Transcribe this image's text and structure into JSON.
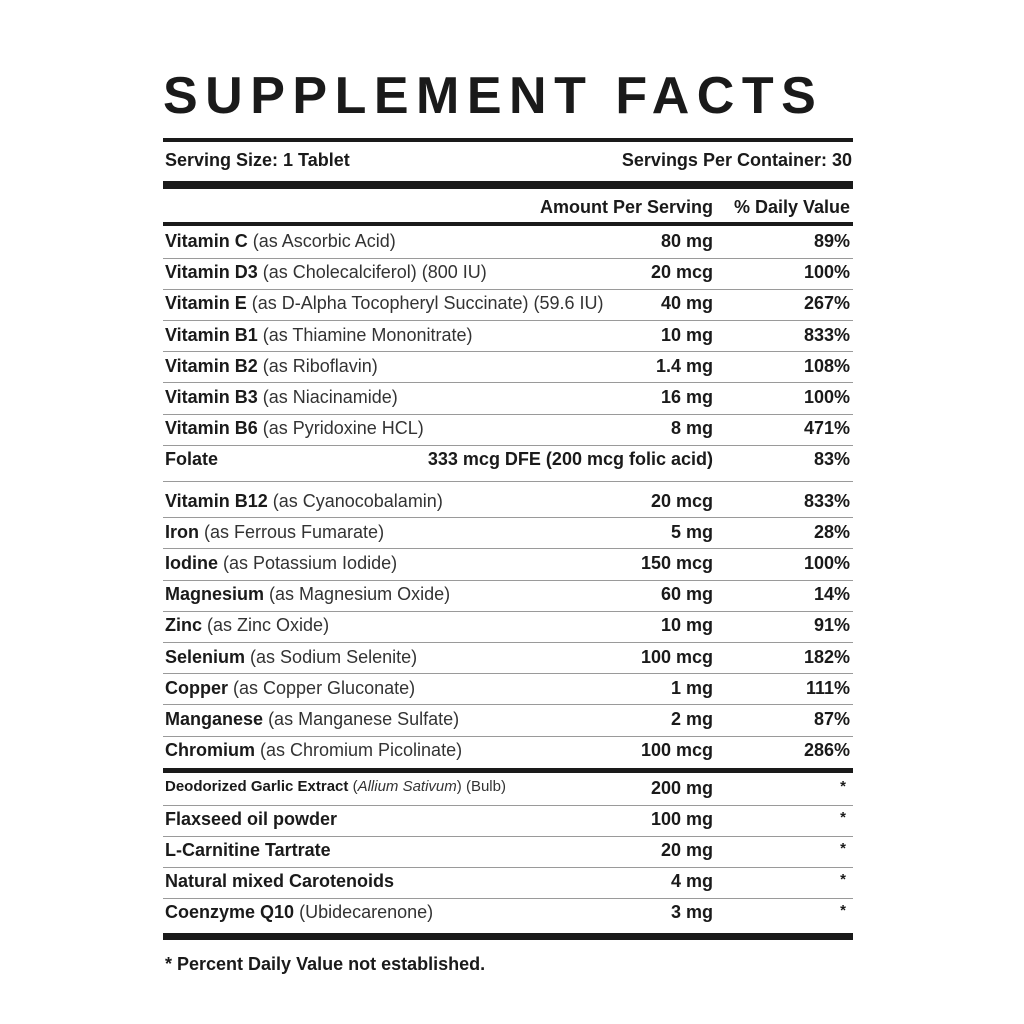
{
  "title": "SUPPLEMENT FACTS",
  "serving_size": "Serving Size: 1 Tablet",
  "servings_per_container": "Servings Per Container: 30",
  "columns": {
    "amount": "Amount Per Serving",
    "daily_value": "% Daily Value"
  },
  "nutrients": [
    {
      "name": "Vitamin C",
      "detail": "(as Ascorbic Acid)",
      "amount": "80 mg",
      "dv": "89%"
    },
    {
      "name": "Vitamin D3",
      "detail": "(as Cholecalciferol) (800 IU)",
      "amount": "20 mcg",
      "dv": "100%"
    },
    {
      "name": "Vitamin E",
      "detail": "(as D-Alpha Tocopheryl Succinate) (59.6 IU)",
      "amount": "40 mg",
      "dv": "267%"
    },
    {
      "name": "Vitamin B1",
      "detail": "(as Thiamine Mononitrate)",
      "amount": "10 mg",
      "dv": "833%"
    },
    {
      "name": "Vitamin B2",
      "detail": "(as Riboflavin)",
      "amount": "1.4 mg",
      "dv": "108%"
    },
    {
      "name": "Vitamin B3",
      "detail": "(as Niacinamide)",
      "amount": "16 mg",
      "dv": "100%"
    },
    {
      "name": "Vitamin B6",
      "detail": "(as Pyridoxine HCL)",
      "amount": "8 mg",
      "dv": "471%"
    },
    {
      "name": "Folate",
      "amount": "333 mcg DFE (200 mcg folic acid)",
      "dv": "83%"
    },
    {
      "name": "Vitamin B12",
      "detail": "(as Cyanocobalamin)",
      "amount": "20 mcg",
      "dv": "833%"
    },
    {
      "name": "Iron",
      "detail": "(as Ferrous Fumarate)",
      "amount": "5 mg",
      "dv": "28%"
    },
    {
      "name": "Iodine",
      "detail": "(as Potassium Iodide)",
      "amount": "150 mcg",
      "dv": "100%"
    },
    {
      "name": "Magnesium",
      "detail": "(as Magnesium Oxide)",
      "amount": "60 mg",
      "dv": "14%"
    },
    {
      "name": "Zinc",
      "detail": "(as Zinc Oxide)",
      "amount": "10 mg",
      "dv": "91%"
    },
    {
      "name": "Selenium",
      "detail": "(as Sodium Selenite)",
      "amount": "100 mcg",
      "dv": "182%"
    },
    {
      "name": "Copper",
      "detail": "(as Copper Gluconate)",
      "amount": "1 mg",
      "dv": "111%"
    },
    {
      "name": "Manganese",
      "detail": "(as Manganese Sulfate)",
      "amount": "2 mg",
      "dv": "87%"
    },
    {
      "name": "Chromium",
      "detail": "(as Chromium Picolinate)",
      "amount": "100 mcg",
      "dv": "286%"
    }
  ],
  "other_ingredients": [
    {
      "name": "Deodorized Garlic Extract",
      "detail": "(",
      "detail_italic": "Allium Sativum",
      "detail_after": ") (Bulb)",
      "amount": "200 mg",
      "dv": "*"
    },
    {
      "name": "Flaxseed oil powder",
      "amount": "100 mg",
      "dv": "*"
    },
    {
      "name": "L-Carnitine Tartrate",
      "amount": "20 mg",
      "dv": "*"
    },
    {
      "name": "Natural mixed Carotenoids",
      "amount": "4 mg",
      "dv": "*"
    },
    {
      "name": "Coenzyme Q10",
      "detail": "(Ubidecarenone)",
      "amount": "3 mg",
      "dv": "*"
    }
  ],
  "footnote": "* Percent Daily Value not established."
}
